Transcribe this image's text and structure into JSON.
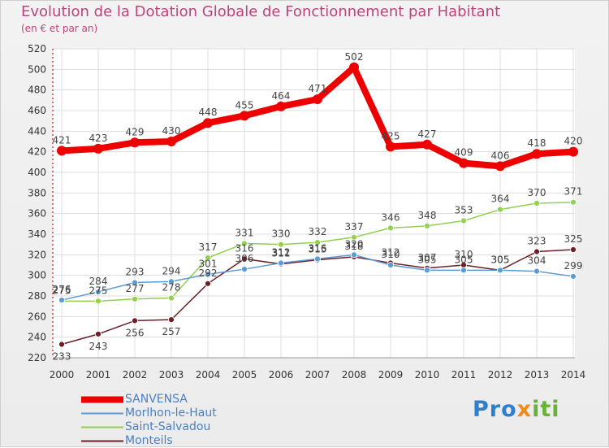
{
  "header": {
    "title": "Evolution de la Dotation Globale de Fonctionnement par Habitant",
    "subtitle": "(en € et par an)"
  },
  "brand": {
    "part1": "Pro",
    "part2": "x",
    "part3": "iti"
  },
  "colors": {
    "title": "#c0427a",
    "axis_text": "#333333",
    "grid": "#dddddd",
    "legend_text": "#4a7fc1"
  },
  "chart_data": {
    "type": "line",
    "title": "Evolution de la Dotation Globale de Fonctionnement par Habitant",
    "subtitle": "(en € et par an)",
    "xlabel": "",
    "ylabel": "",
    "x": [
      "2000",
      "2001",
      "2002",
      "2003",
      "2004",
      "2005",
      "2006",
      "2007",
      "2008",
      "2009",
      "2010",
      "2011",
      "2012",
      "2013",
      "2014"
    ],
    "ylim": [
      220,
      520
    ],
    "yticks": [
      "220",
      "240",
      "260",
      "280",
      "300",
      "320",
      "340",
      "360",
      "380",
      "400",
      "420",
      "440",
      "460",
      "480",
      "500",
      "520"
    ],
    "grid": true,
    "legend_position": "bottom-left",
    "series": [
      {
        "name": "SANVENSA",
        "color": "#ee0000",
        "values": [
          421,
          423,
          429,
          430,
          448,
          455,
          464,
          471,
          502,
          425,
          427,
          409,
          406,
          418,
          420
        ],
        "labels": [
          "421",
          "423",
          "429",
          "430",
          "448",
          "455",
          "464",
          "471",
          "502",
          "425",
          "427",
          "409",
          "406",
          "418",
          "420"
        ]
      },
      {
        "name": "Morlhon-le-Haut",
        "color": "#5b9bd5",
        "values": [
          276,
          284,
          293,
          294,
          301,
          306,
          312,
          316,
          320,
          310,
          305,
          305,
          305,
          304,
          299
        ],
        "labels": [
          "276",
          "284",
          "293",
          "294",
          "301",
          "306",
          "312",
          "316",
          "320",
          "310",
          "305",
          "305",
          "305",
          "304",
          "299"
        ]
      },
      {
        "name": "Saint-Salvadou",
        "color": "#92d050",
        "values": [
          275,
          275,
          277,
          278,
          317,
          331,
          330,
          332,
          337,
          346,
          348,
          353,
          364,
          370,
          371
        ],
        "labels": [
          "275",
          "275",
          "277",
          "278",
          "317",
          "331",
          "330",
          "332",
          "337",
          "346",
          "348",
          "353",
          "364",
          "370",
          "371"
        ]
      },
      {
        "name": "Monteils",
        "color": "#6b1f26",
        "values": [
          233,
          243,
          256,
          257,
          292,
          316,
          311,
          315,
          318,
          312,
          307,
          310,
          305,
          323,
          325
        ],
        "labels": [
          "233",
          "243",
          "256",
          "257",
          "292",
          "316",
          "311",
          "315",
          "318",
          "312",
          "307",
          "310",
          "305",
          "323",
          "325"
        ]
      }
    ]
  }
}
